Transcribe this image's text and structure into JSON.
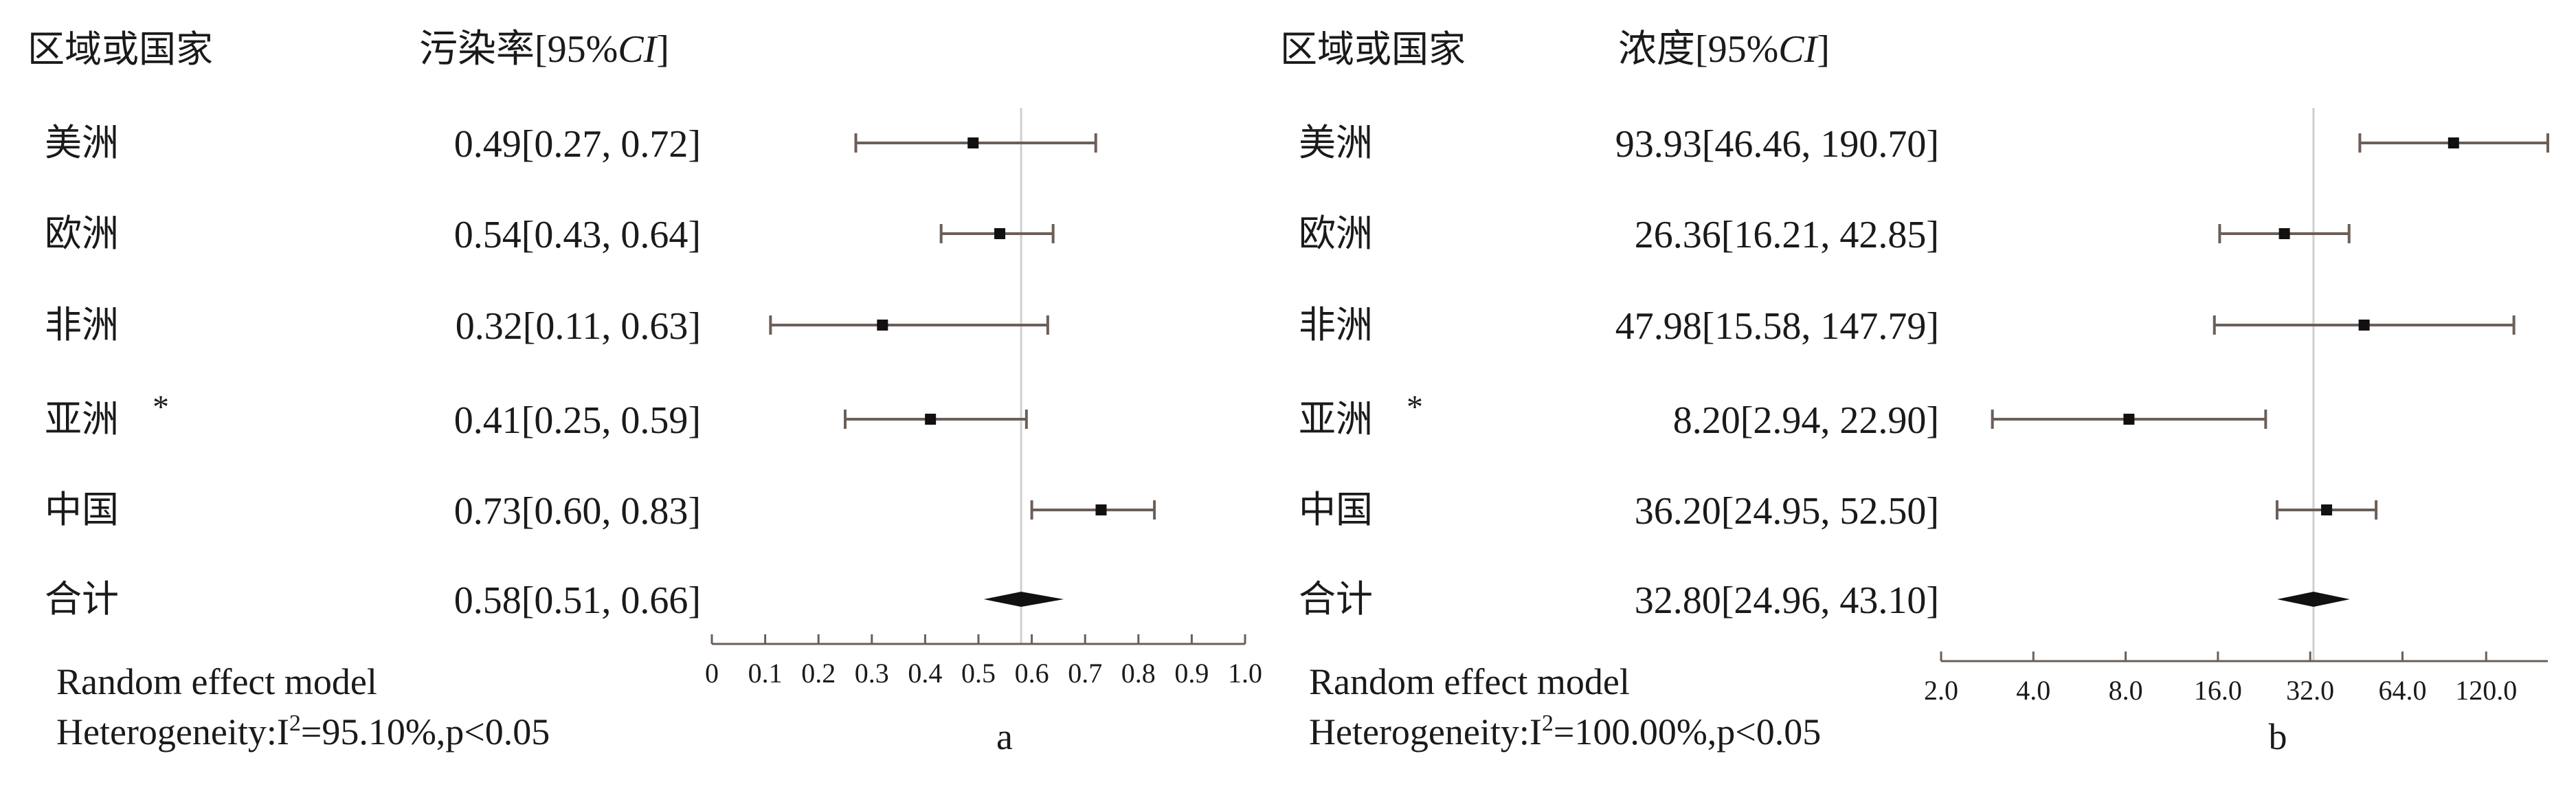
{
  "chart_data": [
    {
      "type": "forest",
      "panel_label": "a",
      "header_region": "区域或国家",
      "header_value": "污染率[95%",
      "header_value_italic": "CI",
      "header_value_close": "]",
      "rows": [
        {
          "region": "美洲",
          "label": "0.49[0.27, 0.72]",
          "estimate": 0.49,
          "lower": 0.27,
          "upper": 0.72
        },
        {
          "region": "欧洲",
          "label": "0.54[0.43, 0.64]",
          "estimate": 0.54,
          "lower": 0.43,
          "upper": 0.64
        },
        {
          "region": "非洲",
          "label": "0.32[0.11, 0.63]",
          "estimate": 0.32,
          "lower": 0.11,
          "upper": 0.63
        },
        {
          "region": "亚洲",
          "asterisk": "*",
          "label": "0.41[0.25, 0.59]",
          "estimate": 0.41,
          "lower": 0.25,
          "upper": 0.59
        },
        {
          "region": "中国",
          "label": "0.73[0.60, 0.83]",
          "estimate": 0.73,
          "lower": 0.6,
          "upper": 0.83
        }
      ],
      "summary": {
        "region": "合计",
        "label": "0.58[0.51, 0.66]",
        "estimate": 0.58,
        "lower": 0.51,
        "upper": 0.66
      },
      "reference_line": 0.58,
      "scale": "linear",
      "xlim": [
        0,
        1.0
      ],
      "ticks": [
        0,
        0.1,
        0.2,
        0.3,
        0.4,
        0.5,
        0.6,
        0.7,
        0.8,
        0.9,
        1.0
      ],
      "tick_labels": [
        "0",
        "0.1",
        "0.2",
        "0.3",
        "0.4",
        "0.5",
        "0.6",
        "0.7",
        "0.8",
        "0.9",
        "1.0"
      ],
      "footer_model": "Random effect model",
      "footer_het_prefix": "Heterogeneity:I",
      "footer_het_sup": "2",
      "footer_het_rest": "=95.10%,p<0.05"
    },
    {
      "type": "forest",
      "panel_label": "b",
      "header_region": "区域或国家",
      "header_value": "浓度[95%",
      "header_value_italic": "CI",
      "header_value_close": "]",
      "rows": [
        {
          "region": "美洲",
          "label": "93.93[46.46, 190.70]",
          "estimate": 93.93,
          "lower": 46.46,
          "upper": 190.7
        },
        {
          "region": "欧洲",
          "label": "26.36[16.21, 42.85]",
          "estimate": 26.36,
          "lower": 16.21,
          "upper": 42.85
        },
        {
          "region": "非洲",
          "label": "47.98[15.58, 147.79]",
          "estimate": 47.98,
          "lower": 15.58,
          "upper": 147.79
        },
        {
          "region": "亚洲",
          "asterisk": "*",
          "label": "8.20[2.94, 22.90]",
          "estimate": 8.2,
          "lower": 2.94,
          "upper": 22.9
        },
        {
          "region": "中国",
          "label": "36.20[24.95, 52.50]",
          "estimate": 36.2,
          "lower": 24.95,
          "upper": 52.5
        }
      ],
      "summary": {
        "region": "合计",
        "label": "32.80[24.96, 43.10]",
        "estimate": 32.8,
        "lower": 24.96,
        "upper": 43.1
      },
      "reference_line": 32.8,
      "scale": "log2",
      "xlim": [
        2.0,
        190.7
      ],
      "ticks": [
        2,
        4,
        8,
        16,
        32,
        64,
        120
      ],
      "tick_labels": [
        "2.0",
        "4.0",
        "8.0",
        "16.0",
        "32.0",
        "64.0",
        "120.0"
      ],
      "footer_model": "Random effect model",
      "footer_het_prefix": "Heterogeneity:I",
      "footer_het_sup": "2",
      "footer_het_rest": "=100.00%,p<0.05"
    }
  ]
}
